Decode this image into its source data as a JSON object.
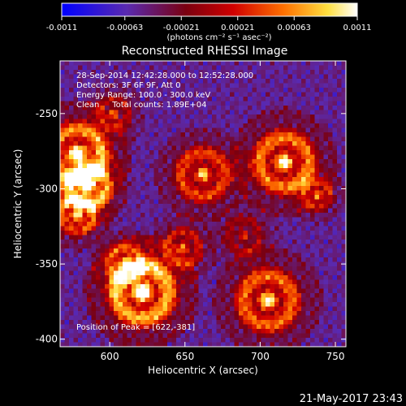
{
  "chart_data": {
    "type": "heatmap",
    "title": "Reconstructed RHESSI Image",
    "xlabel": "Heliocentric X (arcsec)",
    "ylabel": "Heliocentric Y (arcsec)",
    "xlim": [
      567,
      757
    ],
    "ylim": [
      -405,
      -215
    ],
    "x_ticks": [
      "600",
      "650",
      "700",
      "750"
    ],
    "x_tick_values": [
      600,
      650,
      700,
      750
    ],
    "y_ticks": [
      "-250",
      "-300",
      "-350",
      "-400"
    ],
    "y_tick_values": [
      -250,
      -300,
      -350,
      -400
    ],
    "colorbar": {
      "ticks": [
        "-0.0011",
        "-0.00063",
        "-0.00021",
        "0.00021",
        "0.00063",
        "0.0011"
      ],
      "tick_values": [
        -0.0011,
        -0.00063,
        -0.00021,
        0.00021,
        0.00063,
        0.0011
      ],
      "range": [
        -0.0011,
        0.0011
      ],
      "units": "(photons cm⁻² s⁻¹ asec⁻²)",
      "colors": [
        "#0000ff",
        "#6a2aa0",
        "#8a0000",
        "#e00000",
        "#ff8000",
        "#ffff80",
        "#ffffff"
      ]
    },
    "annotations": [
      "28-Sep-2014 12:42:28.000 to 12:52:28.000",
      "Detectors: 3F 6F 9F, Att 0",
      "Energy Range: 100.0 - 300.0 keV",
      "Clean     Total counts: 1.89E+04"
    ],
    "peak_label": "Position of Peak = [622,-381]",
    "peak": [
      622,
      -381
    ],
    "footer_date": "21-May-2017 23:43"
  }
}
